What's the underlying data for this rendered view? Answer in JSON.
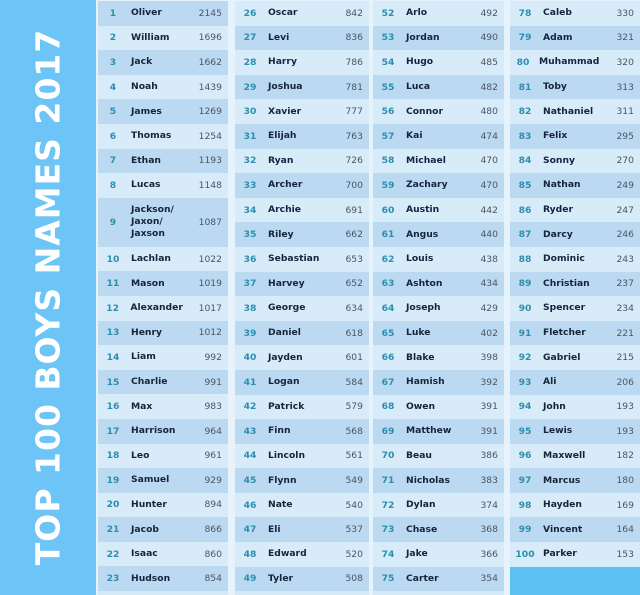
{
  "title": "TOP 100 BOYS NAMES 2017",
  "colors": {
    "banner": "#6cc5f6",
    "rank": "#2b8fae",
    "name": "#15243c",
    "row_dark": "#bcd9f2",
    "row_light": "#d8ebf9"
  },
  "columns": [
    [
      [
        1,
        "Oliver",
        2145
      ],
      [
        2,
        "William",
        1696
      ],
      [
        3,
        "Jack",
        1662
      ],
      [
        4,
        "Noah",
        1439
      ],
      [
        5,
        "James",
        1269
      ],
      [
        6,
        "Thomas",
        1254
      ],
      [
        7,
        "Ethan",
        1193
      ],
      [
        8,
        "Lucas",
        1148
      ],
      [
        9,
        "Jackson/ Jaxon/ Jaxson",
        1087
      ],
      [
        10,
        "Lachlan",
        1022
      ],
      [
        11,
        "Mason",
        1019
      ],
      [
        12,
        "Alexander",
        1017
      ],
      [
        13,
        "Henry",
        1012
      ],
      [
        14,
        "Liam",
        992
      ],
      [
        15,
        "Charlie",
        991
      ],
      [
        16,
        "Max",
        983
      ],
      [
        17,
        "Harrison",
        964
      ],
      [
        18,
        "Leo",
        961
      ],
      [
        19,
        "Samuel",
        929
      ],
      [
        20,
        "Hunter",
        894
      ],
      [
        21,
        "Jacob",
        866
      ],
      [
        22,
        "Isaac",
        860
      ],
      [
        23,
        "Hudson",
        854
      ]
    ],
    [
      [
        26,
        "Oscar",
        842
      ],
      [
        27,
        "Levi",
        836
      ],
      [
        28,
        "Harry",
        786
      ],
      [
        29,
        "Joshua",
        781
      ],
      [
        30,
        "Xavier",
        777
      ],
      [
        31,
        "Elijah",
        763
      ],
      [
        32,
        "Ryan",
        726
      ],
      [
        33,
        "Archer",
        700
      ],
      [
        34,
        "Archie",
        691
      ],
      [
        35,
        "Riley",
        662
      ],
      [
        36,
        "Sebastian",
        653
      ],
      [
        37,
        "Harvey",
        652
      ],
      [
        38,
        "George",
        634
      ],
      [
        39,
        "Daniel",
        618
      ],
      [
        40,
        "Jayden",
        601
      ],
      [
        41,
        "Logan",
        584
      ],
      [
        42,
        "Patrick",
        579
      ],
      [
        43,
        "Finn",
        568
      ],
      [
        44,
        "Lincoln",
        561
      ],
      [
        45,
        "Flynn",
        549
      ],
      [
        46,
        "Nate",
        540
      ],
      [
        47,
        "Eli",
        537
      ],
      [
        48,
        "Edward",
        520
      ],
      [
        49,
        "Tyler",
        508
      ]
    ],
    [
      [
        52,
        "Arlo",
        492
      ],
      [
        53,
        "Jordan",
        490
      ],
      [
        54,
        "Hugo",
        485
      ],
      [
        55,
        "Luca",
        482
      ],
      [
        56,
        "Connor",
        480
      ],
      [
        57,
        "Kai",
        474
      ],
      [
        58,
        "Michael",
        470
      ],
      [
        59,
        "Zachary",
        470
      ],
      [
        60,
        "Austin",
        442
      ],
      [
        61,
        "Angus",
        440
      ],
      [
        62,
        "Louis",
        438
      ],
      [
        63,
        "Ashton",
        434
      ],
      [
        64,
        "Joseph",
        429
      ],
      [
        65,
        "Luke",
        402
      ],
      [
        66,
        "Blake",
        398
      ],
      [
        67,
        "Hamish",
        392
      ],
      [
        68,
        "Owen",
        391
      ],
      [
        69,
        "Matthew",
        391
      ],
      [
        70,
        "Beau",
        386
      ],
      [
        71,
        "Nicholas",
        383
      ],
      [
        72,
        "Dylan",
        374
      ],
      [
        73,
        "Chase",
        368
      ],
      [
        74,
        "Jake",
        366
      ],
      [
        75,
        "Carter",
        354
      ]
    ],
    [
      [
        78,
        "Caleb",
        330
      ],
      [
        79,
        "Adam",
        321
      ],
      [
        80,
        "Muhammad",
        320
      ],
      [
        81,
        "Toby",
        313
      ],
      [
        82,
        "Nathaniel",
        311
      ],
      [
        83,
        "Felix",
        295
      ],
      [
        84,
        "Sonny",
        270
      ],
      [
        85,
        "Nathan",
        249
      ],
      [
        86,
        "Ryder",
        247
      ],
      [
        87,
        "Darcy",
        246
      ],
      [
        88,
        "Dominic",
        243
      ],
      [
        89,
        "Christian",
        237
      ],
      [
        90,
        "Spencer",
        234
      ],
      [
        91,
        "Fletcher",
        221
      ],
      [
        92,
        "Gabriel",
        215
      ],
      [
        93,
        "Ali",
        206
      ],
      [
        94,
        "John",
        193
      ],
      [
        95,
        "Lewis",
        193
      ],
      [
        96,
        "Maxwell",
        182
      ],
      [
        97,
        "Marcus",
        180
      ],
      [
        98,
        "Hayden",
        169
      ],
      [
        99,
        "Vincent",
        164
      ],
      [
        100,
        "Parker",
        153
      ]
    ]
  ]
}
